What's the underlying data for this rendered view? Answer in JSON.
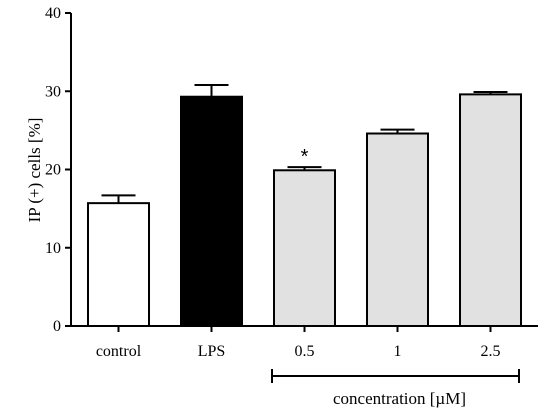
{
  "chart_data": {
    "type": "bar",
    "categories": [
      "control",
      "LPS",
      "0.5",
      "1",
      "2.5"
    ],
    "values": [
      15.7,
      29.3,
      19.9,
      24.6,
      29.6
    ],
    "errors": [
      1.0,
      1.5,
      0.4,
      0.5,
      0.3
    ],
    "bar_colors": [
      "#ffffff",
      "#000000",
      "#e1e1e1",
      "#e1e1e1",
      "#e1e1e1"
    ],
    "significance": [
      "",
      "",
      "*",
      "",
      ""
    ],
    "ylabel": "IP (+) cells [%]",
    "xlabel": "",
    "ylim": [
      0,
      40
    ],
    "yticks": [
      0,
      10,
      20,
      30,
      40
    ],
    "group_bracket": {
      "label": "concentration [µM]",
      "from_category": 2,
      "to_category": 4
    },
    "grid": false
  }
}
